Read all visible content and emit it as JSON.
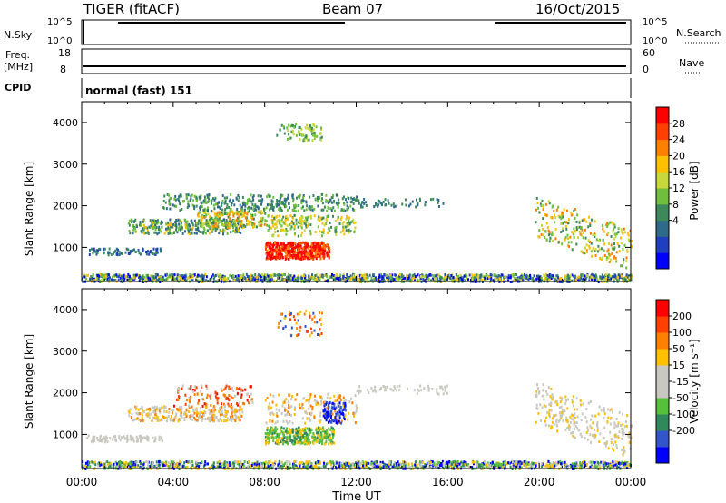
{
  "header": {
    "radar": "TIGER (fitACF)",
    "beam": "Beam 07",
    "date": "16/Oct/2015"
  },
  "small_panels": {
    "nsky_label": "N.Sky",
    "nsky_ticks": [
      "10^5",
      "10^0"
    ],
    "nsearch_label": "N.Search",
    "nsearch_ticks": [
      "10^5",
      "10^0"
    ],
    "freq_label_1": "Freq.",
    "freq_label_2": "[MHz]",
    "freq_ticks": [
      "18",
      "8"
    ],
    "nave_label": "Nave",
    "nave_ticks": [
      "60",
      "0"
    ],
    "cpid_label": "CPID",
    "cpid_value": "normal (fast) 151"
  },
  "chart_data": [
    {
      "type": "heatmap",
      "name": "power-panel",
      "ylabel": "Slant Range [km]",
      "yticks": [
        "4000",
        "3000",
        "2000",
        "1000"
      ],
      "ylim": [
        180,
        4500
      ],
      "xlim_hours": [
        0,
        24
      ],
      "colorbar": {
        "label": "Power [dB]",
        "ticks": [
          "28",
          "24",
          "20",
          "16",
          "12",
          "8",
          "4"
        ],
        "colors": [
          "#0000ff",
          "#1f3fbf",
          "#2e6b8a",
          "#3c8a5a",
          "#6fbf3c",
          "#c8d83a",
          "#ffc000",
          "#ff8000",
          "#ff4000",
          "#ff0000"
        ]
      }
    },
    {
      "type": "heatmap",
      "name": "velocity-panel",
      "ylabel": "Slant Range [km]",
      "yticks": [
        "4000",
        "3000",
        "2000",
        "1000"
      ],
      "ylim": [
        180,
        4500
      ],
      "xlim_hours": [
        0,
        24
      ],
      "colorbar": {
        "label": "Velocity [m s⁻¹]",
        "ticks": [
          "200",
          "100",
          "50",
          "15",
          "-15",
          "-50",
          "-100",
          "-200"
        ],
        "colors": [
          "#0000ff",
          "#3355cc",
          "#2e8a5a",
          "#55c03c",
          "#c8c8c0",
          "#c8c8c0",
          "#ffc000",
          "#ff8000",
          "#ff4000",
          "#ff0000"
        ]
      }
    }
  ],
  "x_axis": {
    "ticks": [
      "00:00",
      "04:00",
      "08:00",
      "12:00",
      "16:00",
      "20:00",
      "00:00"
    ],
    "label": "Time UT"
  }
}
